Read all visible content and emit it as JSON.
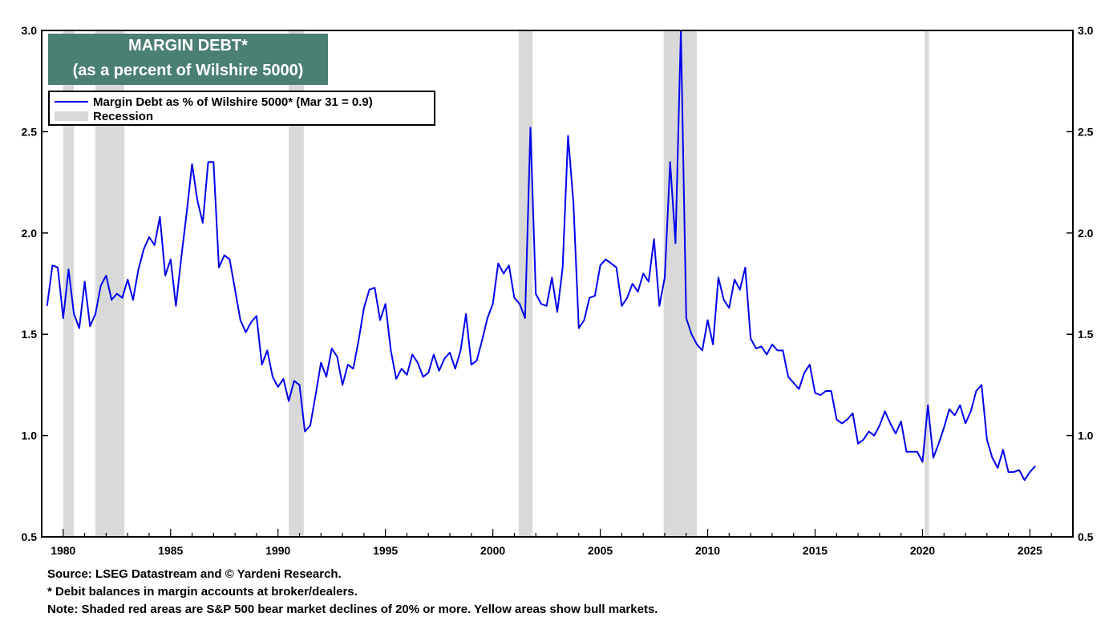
{
  "chart_data": {
    "type": "line",
    "title": "MARGIN DEBT*",
    "subtitle": "(as a percent of Wilshire 5000)",
    "xlabel": "",
    "ylabel": "",
    "xlim": [
      1979.0,
      2027.0
    ],
    "ylim": [
      0.5,
      3.0
    ],
    "yticks": [
      "0.5",
      "1.0",
      "1.5",
      "2.0",
      "2.5",
      "3.0"
    ],
    "xticks": [
      "1980",
      "1985",
      "1990",
      "1995",
      "2000",
      "2005",
      "2010",
      "2015",
      "2020",
      "2025"
    ],
    "legend": {
      "series_label": "Margin Debt as % of Wilshire 5000*  (Mar 31 = 0.9)",
      "recession_label": "Recession"
    },
    "recessions": [
      [
        1980.0,
        1980.5
      ],
      [
        1981.5,
        1982.85
      ],
      [
        1990.5,
        1991.2
      ],
      [
        2001.2,
        2001.85
      ],
      [
        2007.95,
        2009.5
      ],
      [
        2020.1,
        2020.3
      ]
    ],
    "series": [
      {
        "name": "Margin Debt as % of Wilshire 5000*",
        "color": "#0000ee",
        "points": [
          [
            1979.25,
            1.64
          ],
          [
            1979.5,
            1.84
          ],
          [
            1979.75,
            1.83
          ],
          [
            1980.0,
            1.58
          ],
          [
            1980.25,
            1.82
          ],
          [
            1980.5,
            1.6
          ],
          [
            1980.75,
            1.53
          ],
          [
            1981.0,
            1.76
          ],
          [
            1981.25,
            1.54
          ],
          [
            1981.5,
            1.6
          ],
          [
            1981.75,
            1.74
          ],
          [
            1982.0,
            1.79
          ],
          [
            1982.25,
            1.67
          ],
          [
            1982.5,
            1.7
          ],
          [
            1982.75,
            1.68
          ],
          [
            1983.0,
            1.77
          ],
          [
            1983.25,
            1.67
          ],
          [
            1983.5,
            1.82
          ],
          [
            1983.75,
            1.92
          ],
          [
            1984.0,
            1.98
          ],
          [
            1984.25,
            1.94
          ],
          [
            1984.5,
            2.08
          ],
          [
            1984.75,
            1.79
          ],
          [
            1985.0,
            1.87
          ],
          [
            1985.25,
            1.64
          ],
          [
            1985.5,
            1.88
          ],
          [
            1985.75,
            2.1
          ],
          [
            1986.0,
            2.34
          ],
          [
            1986.25,
            2.16
          ],
          [
            1986.5,
            2.05
          ],
          [
            1986.75,
            2.35
          ],
          [
            1987.0,
            2.35
          ],
          [
            1987.25,
            1.83
          ],
          [
            1987.5,
            1.89
          ],
          [
            1987.75,
            1.87
          ],
          [
            1988.0,
            1.72
          ],
          [
            1988.25,
            1.57
          ],
          [
            1988.5,
            1.51
          ],
          [
            1988.75,
            1.56
          ],
          [
            1989.0,
            1.59
          ],
          [
            1989.25,
            1.35
          ],
          [
            1989.5,
            1.42
          ],
          [
            1989.75,
            1.29
          ],
          [
            1990.0,
            1.24
          ],
          [
            1990.25,
            1.28
          ],
          [
            1990.5,
            1.17
          ],
          [
            1990.75,
            1.27
          ],
          [
            1991.0,
            1.25
          ],
          [
            1991.25,
            1.02
          ],
          [
            1991.5,
            1.05
          ],
          [
            1991.75,
            1.2
          ],
          [
            1992.0,
            1.36
          ],
          [
            1992.25,
            1.29
          ],
          [
            1992.5,
            1.43
          ],
          [
            1992.75,
            1.39
          ],
          [
            1993.0,
            1.25
          ],
          [
            1993.25,
            1.35
          ],
          [
            1993.5,
            1.33
          ],
          [
            1993.75,
            1.47
          ],
          [
            1994.0,
            1.63
          ],
          [
            1994.25,
            1.72
          ],
          [
            1994.5,
            1.73
          ],
          [
            1994.75,
            1.57
          ],
          [
            1995.0,
            1.65
          ],
          [
            1995.25,
            1.42
          ],
          [
            1995.5,
            1.28
          ],
          [
            1995.75,
            1.33
          ],
          [
            1996.0,
            1.3
          ],
          [
            1996.25,
            1.4
          ],
          [
            1996.5,
            1.36
          ],
          [
            1996.75,
            1.29
          ],
          [
            1997.0,
            1.31
          ],
          [
            1997.25,
            1.4
          ],
          [
            1997.5,
            1.32
          ],
          [
            1997.75,
            1.38
          ],
          [
            1998.0,
            1.41
          ],
          [
            1998.25,
            1.33
          ],
          [
            1998.5,
            1.42
          ],
          [
            1998.75,
            1.6
          ],
          [
            1999.0,
            1.35
          ],
          [
            1999.25,
            1.37
          ],
          [
            1999.5,
            1.47
          ],
          [
            1999.75,
            1.58
          ],
          [
            2000.0,
            1.65
          ],
          [
            2000.25,
            1.85
          ],
          [
            2000.5,
            1.8
          ],
          [
            2000.75,
            1.84
          ],
          [
            2001.0,
            1.68
          ],
          [
            2001.25,
            1.65
          ],
          [
            2001.5,
            1.58
          ],
          [
            2001.75,
            2.52
          ],
          [
            2002.0,
            1.7
          ],
          [
            2002.25,
            1.65
          ],
          [
            2002.5,
            1.64
          ],
          [
            2002.75,
            1.78
          ],
          [
            2003.0,
            1.61
          ],
          [
            2003.25,
            1.83
          ],
          [
            2003.5,
            2.48
          ],
          [
            2003.75,
            2.15
          ],
          [
            2004.0,
            1.53
          ],
          [
            2004.25,
            1.57
          ],
          [
            2004.5,
            1.68
          ],
          [
            2004.75,
            1.69
          ],
          [
            2005.0,
            1.84
          ],
          [
            2005.25,
            1.87
          ],
          [
            2005.5,
            1.85
          ],
          [
            2005.75,
            1.83
          ],
          [
            2006.0,
            1.64
          ],
          [
            2006.25,
            1.68
          ],
          [
            2006.5,
            1.75
          ],
          [
            2006.75,
            1.71
          ],
          [
            2007.0,
            1.8
          ],
          [
            2007.25,
            1.76
          ],
          [
            2007.5,
            1.97
          ],
          [
            2007.75,
            1.64
          ],
          [
            2008.0,
            1.78
          ],
          [
            2008.25,
            2.35
          ],
          [
            2008.5,
            1.95
          ],
          [
            2008.75,
            3.0
          ],
          [
            2009.0,
            1.58
          ],
          [
            2009.25,
            1.5
          ],
          [
            2009.5,
            1.45
          ],
          [
            2009.75,
            1.42
          ],
          [
            2010.0,
            1.57
          ],
          [
            2010.25,
            1.45
          ],
          [
            2010.5,
            1.78
          ],
          [
            2010.75,
            1.67
          ],
          [
            2011.0,
            1.63
          ],
          [
            2011.25,
            1.77
          ],
          [
            2011.5,
            1.72
          ],
          [
            2011.75,
            1.83
          ],
          [
            2012.0,
            1.48
          ],
          [
            2012.25,
            1.43
          ],
          [
            2012.5,
            1.44
          ],
          [
            2012.75,
            1.4
          ],
          [
            2013.0,
            1.45
          ],
          [
            2013.25,
            1.42
          ],
          [
            2013.5,
            1.42
          ],
          [
            2013.75,
            1.29
          ],
          [
            2014.0,
            1.26
          ],
          [
            2014.25,
            1.23
          ],
          [
            2014.5,
            1.31
          ],
          [
            2014.75,
            1.35
          ],
          [
            2015.0,
            1.21
          ],
          [
            2015.25,
            1.2
          ],
          [
            2015.5,
            1.22
          ],
          [
            2015.75,
            1.22
          ],
          [
            2016.0,
            1.08
          ],
          [
            2016.25,
            1.06
          ],
          [
            2016.5,
            1.08
          ],
          [
            2016.75,
            1.11
          ],
          [
            2017.0,
            0.96
          ],
          [
            2017.25,
            0.98
          ],
          [
            2017.5,
            1.02
          ],
          [
            2017.75,
            1.0
          ],
          [
            2018.0,
            1.05
          ],
          [
            2018.25,
            1.12
          ],
          [
            2018.5,
            1.06
          ],
          [
            2018.75,
            1.01
          ],
          [
            2019.0,
            1.07
          ],
          [
            2019.25,
            0.92
          ],
          [
            2019.5,
            0.92
          ],
          [
            2019.75,
            0.92
          ],
          [
            2020.0,
            0.87
          ],
          [
            2020.25,
            1.15
          ],
          [
            2020.5,
            0.89
          ],
          [
            2020.75,
            0.96
          ],
          [
            2021.0,
            1.04
          ],
          [
            2021.25,
            1.13
          ],
          [
            2021.5,
            1.1
          ],
          [
            2021.75,
            1.15
          ],
          [
            2022.0,
            1.06
          ],
          [
            2022.25,
            1.12
          ],
          [
            2022.5,
            1.22
          ],
          [
            2022.75,
            1.25
          ],
          [
            2023.0,
            0.98
          ],
          [
            2023.25,
            0.89
          ],
          [
            2023.5,
            0.84
          ],
          [
            2023.75,
            0.93
          ],
          [
            2024.0,
            0.82
          ],
          [
            2024.25,
            0.82
          ],
          [
            2024.5,
            0.83
          ],
          [
            2024.75,
            0.78
          ],
          [
            2025.0,
            0.82
          ],
          [
            2025.25,
            0.85
          ]
        ]
      }
    ]
  },
  "notes": {
    "source": "Source: LSEG Datastream and © Yardeni Research.",
    "footnote": "* Debit balances in margin accounts at broker/dealers.",
    "note": "Note: Shaded red areas are S&P 500 bear market declines of 20% or more. Yellow areas show bull markets."
  }
}
